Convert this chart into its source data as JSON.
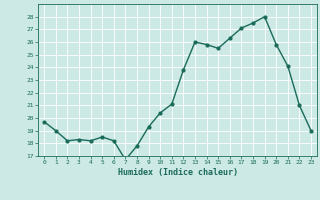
{
  "x": [
    0,
    1,
    2,
    3,
    4,
    5,
    6,
    7,
    8,
    9,
    10,
    11,
    12,
    13,
    14,
    15,
    16,
    17,
    18,
    19,
    20,
    21,
    22,
    23
  ],
  "y": [
    19.7,
    19.0,
    18.2,
    18.3,
    18.2,
    18.5,
    18.2,
    16.7,
    17.8,
    19.3,
    20.4,
    21.1,
    23.8,
    26.0,
    25.8,
    25.5,
    26.3,
    27.1,
    27.5,
    28.0,
    25.8,
    24.1,
    21.0,
    19.0
  ],
  "line_color": "#1a6b5a",
  "marker": "o",
  "marker_size": 2.0,
  "line_width": 1.0,
  "xlabel": "Humidex (Indice chaleur)",
  "bg_color": "#cce9e5",
  "grid_color": "#ffffff",
  "tick_color": "#1a6b5a",
  "label_color": "#1a6b5a",
  "ylim": [
    17,
    29
  ],
  "yticks": [
    17,
    18,
    19,
    20,
    21,
    22,
    23,
    24,
    25,
    26,
    27,
    28
  ],
  "xticks": [
    0,
    1,
    2,
    3,
    4,
    5,
    6,
    7,
    8,
    9,
    10,
    11,
    12,
    13,
    14,
    15,
    16,
    17,
    18,
    19,
    20,
    21,
    22,
    23
  ],
  "xlim": [
    -0.5,
    23.5
  ]
}
